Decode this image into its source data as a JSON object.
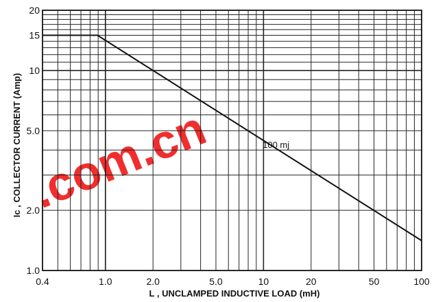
{
  "chart_data": {
    "type": "line",
    "xlabel": "L , UNCLAMPED  INDUCTIVE LOAD (mH)",
    "ylabel": "Ic , COLLECTOR CURRENT (Amp)",
    "x_scale": "log",
    "y_scale": "log",
    "xlim": [
      0.4,
      100
    ],
    "ylim": [
      1.0,
      20
    ],
    "x_ticks": [
      0.4,
      1.0,
      2.0,
      5.0,
      10,
      20,
      50,
      100
    ],
    "x_tick_labels": [
      "0.4",
      "1.0",
      "2.0",
      "5.0",
      "10",
      "20",
      "50",
      "100"
    ],
    "y_ticks": [
      1.0,
      2.0,
      5.0,
      10,
      15,
      20
    ],
    "y_tick_labels": [
      "1.0",
      "2.0",
      "5.0",
      "10",
      "15",
      "20"
    ],
    "grid": true,
    "series": [
      {
        "x": [
          0.4,
          0.89,
          100
        ],
        "y": [
          15,
          15,
          1.41
        ]
      }
    ],
    "annotations": [
      {
        "text": "100 mj",
        "x": 12,
        "y": 4.1
      }
    ]
  },
  "watermark": {
    "text": ".com.cn",
    "color": "#f01818"
  }
}
